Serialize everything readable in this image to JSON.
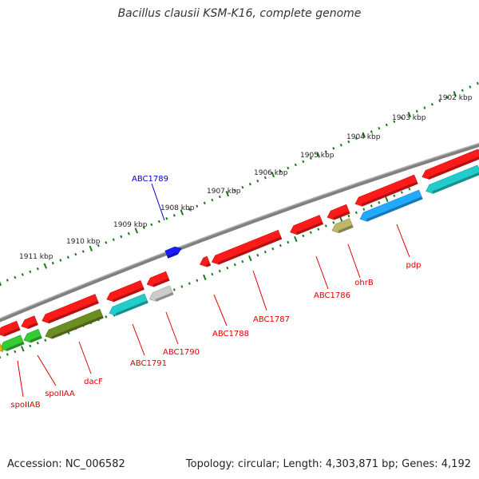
{
  "title": "Bacillus clausii KSM-K16, complete genome",
  "footer": {
    "accession": "Accession: NC_006582",
    "summary": "Topology: circular; Length: 4,303,871 bp; Genes: 4,192"
  },
  "colors": {
    "backbone": "#808080",
    "tick": "#1a7a1a",
    "forward_label": "#0000cc",
    "reverse_label": "#dd0000",
    "red": "#ff1a1a",
    "green": "#33cc33",
    "olive": "#6b8e23",
    "cyan": "#22cccc",
    "sky": "#22aaff",
    "grey": "#cccccc",
    "khaki": "#bdb76b",
    "blue": "#1a1aff",
    "orange": "#ffaa00"
  },
  "scale": {
    "ticks": [
      {
        "label": "1902 kbp"
      },
      {
        "label": "1903 kbp"
      },
      {
        "label": "1904 kbp"
      },
      {
        "label": "1905 kbp"
      },
      {
        "label": "1906 kbp"
      },
      {
        "label": "1907 kbp"
      },
      {
        "label": "1908 kbp"
      },
      {
        "label": "1909 kbp"
      },
      {
        "label": "1910 kbp"
      },
      {
        "label": "1911 kbp"
      }
    ]
  },
  "genes": {
    "forward": [
      {
        "name": "ABC1789",
        "color": "blue"
      }
    ],
    "reverse_labeled": [
      {
        "name": "pdp"
      },
      {
        "name": "ohrB"
      },
      {
        "name": "ABC1786"
      },
      {
        "name": "ABC1787"
      },
      {
        "name": "ABC1788"
      },
      {
        "name": "ABC1790"
      },
      {
        "name": "ABC1791"
      },
      {
        "name": "dacF"
      },
      {
        "name": "spoIIAA"
      },
      {
        "name": "spoIIAB"
      }
    ]
  }
}
